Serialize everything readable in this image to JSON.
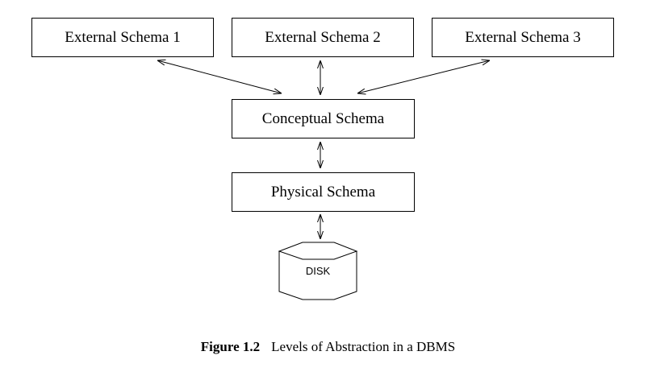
{
  "diagram": {
    "external_schemas": [
      {
        "label": "External Schema 1"
      },
      {
        "label": "External Schema 2"
      },
      {
        "label": "External Schema 3"
      }
    ],
    "conceptual_schema": {
      "label": "Conceptual Schema"
    },
    "physical_schema": {
      "label": "Physical Schema"
    },
    "disk": {
      "label": "DISK"
    },
    "connections": [
      {
        "from": "External Schema 1",
        "to": "Conceptual Schema",
        "direction": "bidirectional"
      },
      {
        "from": "External Schema 2",
        "to": "Conceptual Schema",
        "direction": "bidirectional"
      },
      {
        "from": "External Schema 3",
        "to": "Conceptual Schema",
        "direction": "bidirectional"
      },
      {
        "from": "Conceptual Schema",
        "to": "Physical Schema",
        "direction": "bidirectional"
      },
      {
        "from": "Physical Schema",
        "to": "DISK",
        "direction": "bidirectional"
      }
    ]
  },
  "caption": {
    "figure_label": "Figure 1.2",
    "text": "Levels of Abstraction in a DBMS"
  }
}
